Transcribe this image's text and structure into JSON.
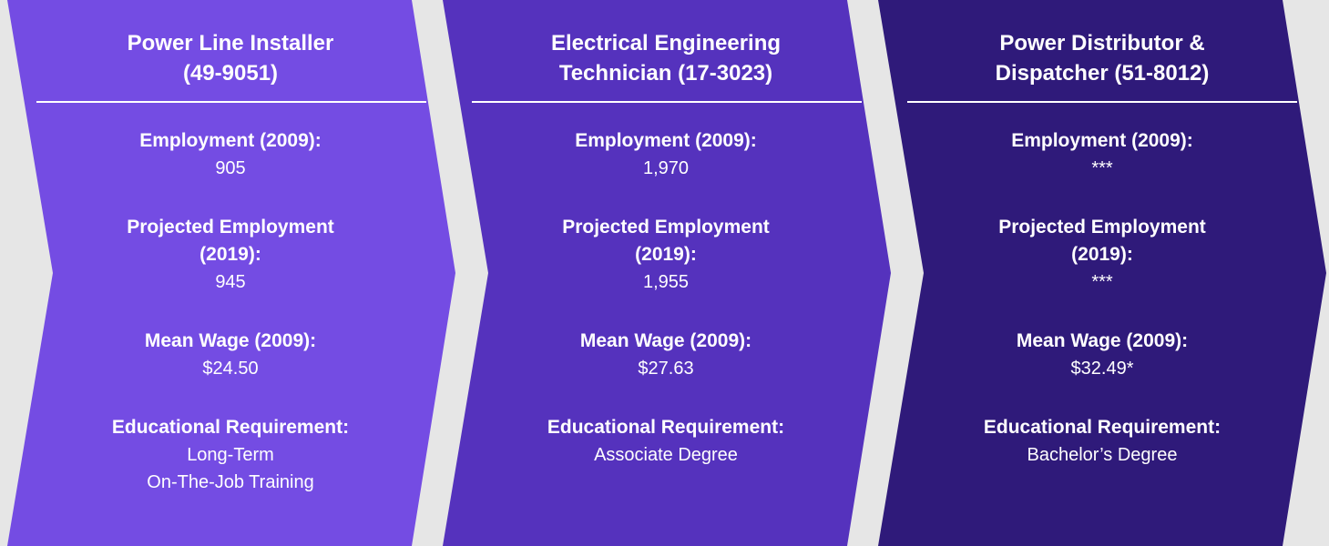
{
  "cards": [
    {
      "title": [
        "Power Line Installer",
        "(49-9051)"
      ],
      "items": [
        {
          "label": [
            "Employment (2009):"
          ],
          "value": [
            "905"
          ]
        },
        {
          "label": [
            "Projected Employment",
            "(2019):"
          ],
          "value": [
            "945"
          ]
        },
        {
          "label": [
            "Mean Wage (2009):"
          ],
          "value": [
            "$24.50"
          ]
        },
        {
          "label": [
            "Educational Requirement:"
          ],
          "value": [
            "Long-Term",
            "On-The-Job Training"
          ]
        }
      ]
    },
    {
      "title": [
        "Electrical Engineering",
        "Technician (17-3023)"
      ],
      "items": [
        {
          "label": [
            "Employment (2009):"
          ],
          "value": [
            "1,970"
          ]
        },
        {
          "label": [
            "Projected Employment",
            "(2019):"
          ],
          "value": [
            "1,955"
          ]
        },
        {
          "label": [
            "Mean Wage (2009):"
          ],
          "value": [
            "$27.63"
          ]
        },
        {
          "label": [
            "Educational Requirement:"
          ],
          "value": [
            "Associate Degree"
          ]
        }
      ]
    },
    {
      "title": [
        "Power Distributor &",
        "Dispatcher (51-8012)"
      ],
      "items": [
        {
          "label": [
            "Employment (2009):"
          ],
          "value": [
            "***"
          ]
        },
        {
          "label": [
            "Projected Employment",
            "(2019):"
          ],
          "value": [
            "***"
          ]
        },
        {
          "label": [
            "Mean Wage (2009):"
          ],
          "value": [
            "$32.49*"
          ]
        },
        {
          "label": [
            "Educational Requirement:"
          ],
          "value": [
            "Bachelor’s Degree"
          ]
        }
      ]
    }
  ]
}
